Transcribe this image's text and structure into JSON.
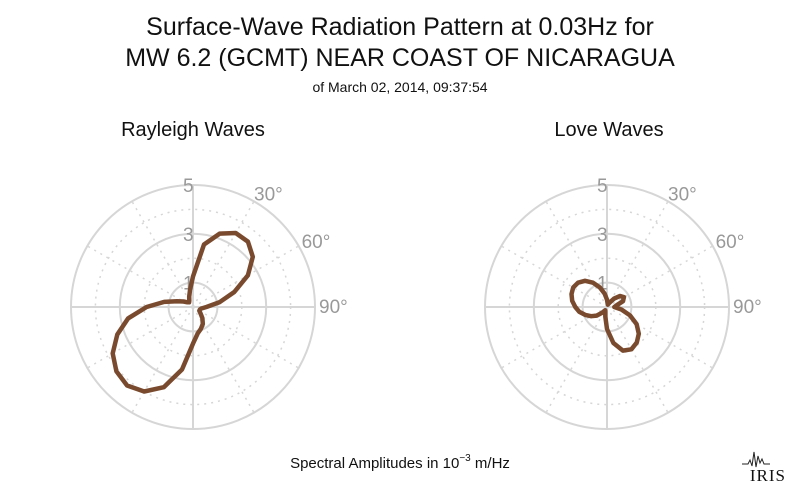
{
  "title_line1": "Surface-Wave Radiation Pattern at 0.03Hz for",
  "title_line2": "MW 6.2 (GCMT) NEAR COAST OF NICARAGUA",
  "subtitle": "of March 02, 2014, 09:37:54",
  "footer": {
    "prefix": "Spectral Amplitudes in ",
    "base": "10",
    "exponent": "−3",
    "unit": " m/Hz"
  },
  "logo_text": "IRIS",
  "colors": {
    "curve": "#7a4a2e",
    "grid": "#d6d6d6",
    "tick_label": "#999999"
  },
  "chart_data": [
    {
      "type": "polar-line",
      "title": "Rayleigh Waves",
      "rmax": 5,
      "radial_ticks": [
        1,
        3,
        5
      ],
      "angle_ticks": [
        "30°",
        "60°",
        "90°"
      ],
      "angle_tick_degrees": [
        30,
        60,
        90
      ],
      "series_color": "#7a4a2e",
      "points": [
        {
          "az": 0,
          "r": 1.25
        },
        {
          "az": 10,
          "r": 2.6
        },
        {
          "az": 20,
          "r": 3.2
        },
        {
          "az": 30,
          "r": 3.5
        },
        {
          "az": 40,
          "r": 3.5
        },
        {
          "az": 50,
          "r": 3.2
        },
        {
          "az": 60,
          "r": 2.6
        },
        {
          "az": 70,
          "r": 1.8
        },
        {
          "az": 80,
          "r": 1.1
        },
        {
          "az": 90,
          "r": 0.55
        },
        {
          "az": 100,
          "r": 0.35
        },
        {
          "az": 110,
          "r": 0.3
        },
        {
          "az": 120,
          "r": 0.3
        },
        {
          "az": 130,
          "r": 0.4
        },
        {
          "az": 140,
          "r": 0.6
        },
        {
          "az": 150,
          "r": 0.8
        },
        {
          "az": 160,
          "r": 0.95
        },
        {
          "az": 170,
          "r": 1.1
        },
        {
          "az": 180,
          "r": 1.5
        },
        {
          "az": 190,
          "r": 2.6
        },
        {
          "az": 200,
          "r": 3.5
        },
        {
          "az": 210,
          "r": 4.0
        },
        {
          "az": 220,
          "r": 4.2
        },
        {
          "az": 230,
          "r": 4.1
        },
        {
          "az": 240,
          "r": 3.8
        },
        {
          "az": 250,
          "r": 3.3
        },
        {
          "az": 260,
          "r": 2.7
        },
        {
          "az": 270,
          "r": 1.9
        },
        {
          "az": 280,
          "r": 1.2
        },
        {
          "az": 290,
          "r": 0.7
        },
        {
          "az": 300,
          "r": 0.45
        },
        {
          "az": 310,
          "r": 0.3
        },
        {
          "az": 320,
          "r": 0.25
        },
        {
          "az": 330,
          "r": 0.3
        },
        {
          "az": 340,
          "r": 0.45
        },
        {
          "az": 350,
          "r": 0.7
        }
      ]
    },
    {
      "type": "polar-line",
      "title": "Love Waves",
      "rmax": 5,
      "radial_ticks": [
        1,
        3,
        5
      ],
      "angle_ticks": [
        "30°",
        "60°",
        "90°"
      ],
      "angle_tick_degrees": [
        30,
        60,
        90
      ],
      "series_color": "#7a4a2e",
      "points": [
        {
          "az": 0,
          "r": 0.3
        },
        {
          "az": 10,
          "r": 0.15
        },
        {
          "az": 20,
          "r": 0.1
        },
        {
          "az": 30,
          "r": 0.2
        },
        {
          "az": 40,
          "r": 0.45
        },
        {
          "az": 50,
          "r": 0.7
        },
        {
          "az": 60,
          "r": 0.8
        },
        {
          "az": 70,
          "r": 0.7
        },
        {
          "az": 80,
          "r": 0.4
        },
        {
          "az": 90,
          "r": 0.3
        },
        {
          "az": 100,
          "r": 0.6
        },
        {
          "az": 110,
          "r": 1.0
        },
        {
          "az": 120,
          "r": 1.4
        },
        {
          "az": 130,
          "r": 1.7
        },
        {
          "az": 140,
          "r": 1.9
        },
        {
          "az": 150,
          "r": 2.0
        },
        {
          "az": 160,
          "r": 1.9
        },
        {
          "az": 170,
          "r": 1.5
        },
        {
          "az": 180,
          "r": 0.9
        },
        {
          "az": 190,
          "r": 0.4
        },
        {
          "az": 200,
          "r": 0.2
        },
        {
          "az": 210,
          "r": 0.15
        },
        {
          "az": 220,
          "r": 0.3
        },
        {
          "az": 230,
          "r": 0.55
        },
        {
          "az": 240,
          "r": 0.75
        },
        {
          "az": 250,
          "r": 0.95
        },
        {
          "az": 260,
          "r": 1.15
        },
        {
          "az": 270,
          "r": 1.3
        },
        {
          "az": 280,
          "r": 1.45
        },
        {
          "az": 290,
          "r": 1.55
        },
        {
          "az": 300,
          "r": 1.6
        },
        {
          "az": 310,
          "r": 1.55
        },
        {
          "az": 320,
          "r": 1.4
        },
        {
          "az": 330,
          "r": 1.15
        },
        {
          "az": 340,
          "r": 0.85
        },
        {
          "az": 350,
          "r": 0.55
        }
      ]
    }
  ]
}
